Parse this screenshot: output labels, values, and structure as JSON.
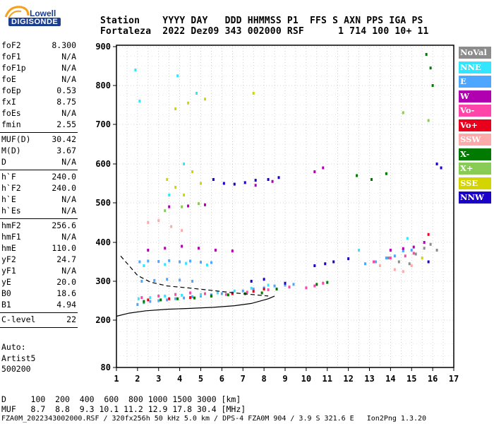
{
  "logo": {
    "line1": "Lowell",
    "line2": "DIGISONDE"
  },
  "header": {
    "row1": "Station    YYYY DAY   DDD HHMMSS P1  FFS S AXN PPS IGA PS",
    "row2": "Fortaleza  2022 Dez09 343 002000 RSF      1 714 100 10+ 11"
  },
  "params_group1": [
    {
      "name": "foF2",
      "value": "8.300"
    },
    {
      "name": "foF1",
      "value": "N/A"
    },
    {
      "name": "foF1p",
      "value": "N/A"
    },
    {
      "name": "foE",
      "value": "N/A"
    },
    {
      "name": "foEp",
      "value": "0.53"
    },
    {
      "name": "fxI",
      "value": "8.75"
    },
    {
      "name": "foEs",
      "value": "N/A"
    },
    {
      "name": "fmin",
      "value": "2.55"
    }
  ],
  "params_group2": [
    {
      "name": "MUF(D)",
      "value": "30.42"
    },
    {
      "name": "M(D)",
      "value": "3.67"
    },
    {
      "name": "D",
      "value": "N/A"
    }
  ],
  "params_group3": [
    {
      "name": "h`F",
      "value": "240.0"
    },
    {
      "name": "h`F2",
      "value": "240.0"
    },
    {
      "name": "h`E",
      "value": "N/A"
    },
    {
      "name": "h`Es",
      "value": "N/A"
    }
  ],
  "params_group4": [
    {
      "name": "hmF2",
      "value": "256.6"
    },
    {
      "name": "hmF1",
      "value": "N/A"
    },
    {
      "name": "hmE",
      "value": "110.0"
    },
    {
      "name": "yF2",
      "value": "24.7"
    },
    {
      "name": "yF1",
      "value": "N/A"
    },
    {
      "name": "yE",
      "value": "20.0"
    },
    {
      "name": "B0",
      "value": "18.6"
    },
    {
      "name": "B1",
      "value": "4.94"
    }
  ],
  "params_group5": [
    {
      "name": "C-level",
      "value": "22"
    }
  ],
  "auto": {
    "line1": "Auto:",
    "line2": "Artist5",
    "line3": "500200"
  },
  "footer": {
    "row1": "D     100  200  400  600  800 1000 1500 3000 [km]",
    "row2": "MUF   8.7  8.8  9.3 10.1 11.2 12.9 17.8 30.4 [MHz]",
    "row3": "FZA0M_2022343002000.RSF / 320fx256h 50 kHz 5.0 km / DPS-4 FZA0M 904 / 3.9 S 321.6 E   Ion2Png 1.3.20"
  },
  "legend": [
    {
      "label": "NoVal",
      "color": "#8c8c8c"
    },
    {
      "label": "NNE",
      "color": "#33e6ff"
    },
    {
      "label": "E",
      "color": "#4da6ff"
    },
    {
      "label": "W",
      "color": "#b000b0"
    },
    {
      "label": "Vo-",
      "color": "#ff44aa"
    },
    {
      "label": "Vo+",
      "color": "#e8001c"
    },
    {
      "label": "SSW",
      "color": "#ffaaaa"
    },
    {
      "label": "X-",
      "color": "#007a00"
    },
    {
      "label": "X+",
      "color": "#88cc55"
    },
    {
      "label": "SSE",
      "color": "#d4d400"
    },
    {
      "label": "NNW",
      "color": "#1a00c8"
    }
  ],
  "chart_data": {
    "type": "scatter",
    "xlabel": "",
    "ylabel": "",
    "xlim": [
      1,
      17
    ],
    "ylim": [
      80,
      900
    ],
    "x_ticks": [
      1,
      2,
      3,
      4,
      5,
      6,
      7,
      8,
      9,
      10,
      11,
      12,
      13,
      14,
      15,
      16,
      17
    ],
    "y_ticks": [
      80,
      200,
      300,
      400,
      500,
      600,
      700,
      800,
      900
    ],
    "grid": true,
    "series": [
      {
        "name": "E",
        "values": [
          [
            2.0,
            240
          ],
          [
            2.3,
            245
          ],
          [
            2.6,
            248
          ],
          [
            3.0,
            250
          ],
          [
            3.4,
            252
          ],
          [
            3.8,
            255
          ],
          [
            4.2,
            257
          ],
          [
            4.6,
            260
          ],
          [
            5.0,
            262
          ],
          [
            5.5,
            265
          ],
          [
            6.0,
            268
          ],
          [
            6.5,
            270
          ],
          [
            7.0,
            275
          ],
          [
            7.5,
            280
          ],
          [
            8.0,
            283
          ],
          [
            8.5,
            288
          ],
          [
            9.0,
            290
          ],
          [
            9.4,
            292
          ],
          [
            2.1,
            350
          ],
          [
            2.5,
            352
          ],
          [
            3.0,
            351
          ],
          [
            3.5,
            353
          ],
          [
            4.0,
            350
          ],
          [
            4.5,
            352
          ],
          [
            5.0,
            349
          ],
          [
            5.5,
            348
          ],
          [
            2.2,
            300
          ],
          [
            2.8,
            302
          ],
          [
            3.4,
            305
          ],
          [
            4.0,
            303
          ],
          [
            4.6,
            300
          ],
          [
            12.8,
            345
          ],
          [
            13.3,
            350
          ],
          [
            13.8,
            360
          ],
          [
            14.2,
            365
          ],
          [
            14.6,
            378
          ],
          [
            15.0,
            380
          ]
        ]
      },
      {
        "name": "NNE",
        "values": [
          [
            2.05,
            255
          ],
          [
            2.6,
            258
          ],
          [
            3.3,
            262
          ],
          [
            4.1,
            264
          ],
          [
            5.0,
            266
          ],
          [
            5.8,
            270
          ],
          [
            6.6,
            275
          ],
          [
            7.4,
            282
          ],
          [
            8.2,
            290
          ],
          [
            2.3,
            340
          ],
          [
            3.3,
            343
          ],
          [
            4.3,
            346
          ],
          [
            5.3,
            342
          ],
          [
            3.5,
            520
          ],
          [
            4.2,
            600
          ],
          [
            4.8,
            780
          ],
          [
            1.9,
            840
          ],
          [
            2.1,
            760
          ],
          [
            3.9,
            825
          ],
          [
            12.5,
            380
          ],
          [
            14.8,
            410
          ]
        ]
      },
      {
        "name": "Vo-",
        "values": [
          [
            2.2,
            258
          ],
          [
            3.0,
            262
          ],
          [
            3.8,
            266
          ],
          [
            4.5,
            270
          ],
          [
            5.2,
            268
          ],
          [
            6.2,
            266
          ],
          [
            7.2,
            272
          ],
          [
            8.2,
            278
          ],
          [
            9.2,
            285
          ],
          [
            10.0,
            283
          ],
          [
            10.4,
            288
          ],
          [
            10.8,
            295
          ],
          [
            13.2,
            350
          ],
          [
            14.0,
            360
          ],
          [
            14.7,
            365
          ],
          [
            15.1,
            372
          ]
        ]
      },
      {
        "name": "Vo+",
        "values": [
          [
            2.5,
            252
          ],
          [
            3.5,
            255
          ],
          [
            4.5,
            258
          ],
          [
            5.5,
            262
          ],
          [
            6.5,
            268
          ],
          [
            7.5,
            274
          ],
          [
            8.0,
            280
          ],
          [
            15.8,
            420
          ]
        ]
      },
      {
        "name": "X-",
        "values": [
          [
            2.3,
            248
          ],
          [
            3.1,
            252
          ],
          [
            3.9,
            255
          ],
          [
            4.7,
            257
          ],
          [
            5.5,
            262
          ],
          [
            6.3,
            265
          ],
          [
            7.1,
            268
          ],
          [
            7.9,
            270
          ],
          [
            8.6,
            280
          ],
          [
            10.5,
            292
          ],
          [
            11.0,
            297
          ],
          [
            15.7,
            880
          ],
          [
            15.9,
            845
          ],
          [
            16.0,
            800
          ],
          [
            13.1,
            560
          ],
          [
            13.8,
            575
          ],
          [
            12.4,
            570
          ]
        ]
      },
      {
        "name": "X+",
        "values": [
          [
            3.3,
            480
          ],
          [
            4.1,
            490
          ],
          [
            4.9,
            498
          ],
          [
            14.6,
            730
          ],
          [
            15.8,
            710
          ]
        ]
      },
      {
        "name": "W",
        "values": [
          [
            2.5,
            380
          ],
          [
            3.3,
            385
          ],
          [
            4.1,
            390
          ],
          [
            4.9,
            385
          ],
          [
            5.7,
            380
          ],
          [
            6.5,
            378
          ],
          [
            3.5,
            490
          ],
          [
            4.4,
            492
          ],
          [
            5.2,
            495
          ],
          [
            10.4,
            580
          ],
          [
            10.8,
            590
          ],
          [
            14.0,
            380
          ],
          [
            14.6,
            384
          ],
          [
            15.1,
            388
          ],
          [
            15.6,
            400
          ],
          [
            7.6,
            545
          ],
          [
            8.4,
            555
          ]
        ]
      },
      {
        "name": "SSW",
        "values": [
          [
            2.5,
            450
          ],
          [
            3.0,
            455
          ],
          [
            3.6,
            440
          ],
          [
            4.1,
            430
          ],
          [
            13.5,
            340
          ],
          [
            14.2,
            330
          ],
          [
            14.6,
            325
          ],
          [
            15.0,
            340
          ]
        ]
      },
      {
        "name": "SSE",
        "values": [
          [
            3.4,
            560
          ],
          [
            3.8,
            540
          ],
          [
            4.2,
            520
          ],
          [
            4.6,
            580
          ],
          [
            5.0,
            550
          ],
          [
            3.8,
            740
          ],
          [
            4.4,
            755
          ],
          [
            5.2,
            765
          ],
          [
            7.5,
            780
          ],
          [
            15.5,
            360
          ]
        ]
      },
      {
        "name": "NNW",
        "values": [
          [
            5.6,
            560
          ],
          [
            6.1,
            550
          ],
          [
            6.6,
            548
          ],
          [
            7.1,
            552
          ],
          [
            7.6,
            558
          ],
          [
            8.2,
            560
          ],
          [
            8.7,
            565
          ],
          [
            10.4,
            340
          ],
          [
            10.9,
            345
          ],
          [
            11.3,
            350
          ],
          [
            12.0,
            358
          ],
          [
            7.4,
            300
          ],
          [
            8.0,
            305
          ],
          [
            9.0,
            295
          ],
          [
            16.2,
            600
          ],
          [
            16.4,
            590
          ],
          [
            15.8,
            350
          ]
        ]
      },
      {
        "name": "NoVal",
        "values": [
          [
            15.2,
            370
          ],
          [
            15.6,
            385
          ],
          [
            15.9,
            395
          ],
          [
            16.2,
            380
          ],
          [
            14.9,
            345
          ],
          [
            14.4,
            350
          ],
          [
            13.9,
            360
          ]
        ]
      }
    ],
    "lines": [
      {
        "name": "trace-upper",
        "points": [
          [
            1.2,
            365
          ],
          [
            1.6,
            340
          ],
          [
            2.0,
            315
          ],
          [
            2.6,
            298
          ],
          [
            3.4,
            288
          ],
          [
            4.4,
            283
          ],
          [
            5.6,
            276
          ],
          [
            6.6,
            270
          ],
          [
            7.4,
            266
          ],
          [
            8.2,
            262
          ]
        ]
      },
      {
        "name": "trace-lower",
        "points": [
          [
            1.0,
            210
          ],
          [
            1.6,
            218
          ],
          [
            2.4,
            224
          ],
          [
            3.4,
            228
          ],
          [
            4.4,
            230
          ],
          [
            5.6,
            233
          ],
          [
            6.6,
            237
          ],
          [
            7.4,
            243
          ],
          [
            8.2,
            255
          ],
          [
            8.5,
            262
          ]
        ]
      }
    ]
  }
}
